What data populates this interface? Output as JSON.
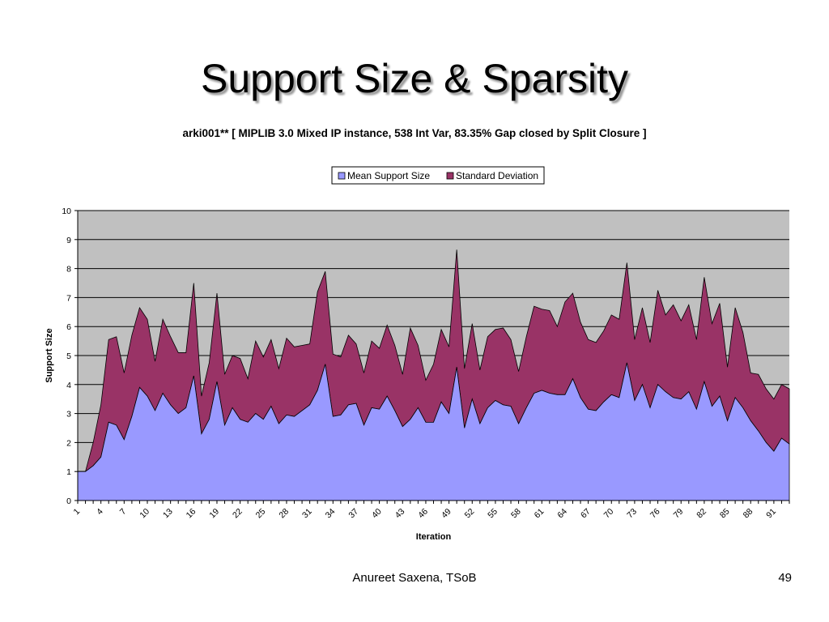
{
  "slide": {
    "title": "Support Size & Sparsity",
    "footer_author": "Anureet Saxena, TSoB",
    "page_number": "49"
  },
  "colors": {
    "plot_background": "#c0c0c0",
    "gridline": "#000000",
    "mean_fill": "#9999ff",
    "std_fill": "#993366",
    "outline": "#000000"
  },
  "chart_data": {
    "type": "area",
    "stacked": true,
    "title": "arki001** [ MIPLIB 3.0 Mixed IP instance, 538 Int Var, 83.35% Gap closed by Split Closure ]",
    "xlabel": "Iteration",
    "ylabel": "Support Size",
    "ylim": [
      0,
      10
    ],
    "y_ticks": [
      "0",
      "1",
      "2",
      "3",
      "4",
      "5",
      "6",
      "7",
      "8",
      "9",
      "10"
    ],
    "x": [
      1,
      2,
      3,
      4,
      5,
      6,
      7,
      8,
      9,
      10,
      11,
      12,
      13,
      14,
      15,
      16,
      17,
      18,
      19,
      20,
      21,
      22,
      23,
      24,
      25,
      26,
      27,
      28,
      29,
      30,
      31,
      32,
      33,
      34,
      35,
      36,
      37,
      38,
      39,
      40,
      41,
      42,
      43,
      44,
      45,
      46,
      47,
      48,
      49,
      50,
      51,
      52,
      53,
      54,
      55,
      56,
      57,
      58,
      59,
      60,
      61,
      62,
      63,
      64,
      65,
      66,
      67,
      68,
      69,
      70,
      71,
      72,
      73,
      74,
      75,
      76,
      77,
      78,
      79,
      80,
      81,
      82,
      83,
      84,
      85,
      86,
      87,
      88,
      89,
      90,
      91,
      92,
      93
    ],
    "x_tick_labels": [
      "1",
      "4",
      "7",
      "10",
      "13",
      "16",
      "19",
      "22",
      "25",
      "28",
      "31",
      "34",
      "37",
      "40",
      "43",
      "46",
      "49",
      "52",
      "55",
      "58",
      "61",
      "64",
      "67",
      "70",
      "73",
      "76",
      "79",
      "82",
      "85",
      "88",
      "91"
    ],
    "grid": true,
    "legend_position": "top-center",
    "series": [
      {
        "name": "Mean Support Size",
        "values": [
          1,
          1,
          1.2,
          1.5,
          2.7,
          2.6,
          2.1,
          2.9,
          3.9,
          3.6,
          3.1,
          3.7,
          3.3,
          3.0,
          3.2,
          4.3,
          2.3,
          2.8,
          4.1,
          2.6,
          3.2,
          2.8,
          2.7,
          3.0,
          2.8,
          3.25,
          2.65,
          2.95,
          2.9,
          3.1,
          3.3,
          3.8,
          4.7,
          2.9,
          2.95,
          3.3,
          3.35,
          2.6,
          3.2,
          3.15,
          3.6,
          3.1,
          2.55,
          2.8,
          3.2,
          2.7,
          2.7,
          3.4,
          3.0,
          4.6,
          2.5,
          3.5,
          2.65,
          3.2,
          3.45,
          3.3,
          3.25,
          2.65,
          3.2,
          3.7,
          3.8,
          3.7,
          3.65,
          3.65,
          4.2,
          3.55,
          3.15,
          3.1,
          3.4,
          3.65,
          3.55,
          4.75,
          3.45,
          4.0,
          3.2,
          4.0,
          3.75,
          3.55,
          3.5,
          3.75,
          3.15,
          4.1,
          3.25,
          3.6,
          2.75,
          3.55,
          3.2,
          2.75,
          2.4,
          2.0,
          1.7,
          2.15,
          1.95
        ]
      },
      {
        "name": "Standard Deviation",
        "values": [
          0,
          0,
          0.8,
          1.8,
          2.85,
          3.05,
          2.3,
          2.8,
          2.75,
          2.65,
          1.7,
          2.55,
          2.35,
          2.1,
          1.9,
          3.2,
          1.3,
          1.95,
          3.05,
          1.75,
          1.8,
          2.1,
          1.5,
          2.5,
          2.15,
          2.3,
          1.9,
          2.65,
          2.4,
          2.25,
          2.1,
          3.4,
          3.2,
          2.15,
          2.0,
          2.4,
          2.05,
          1.8,
          2.3,
          2.1,
          2.45,
          2.25,
          1.8,
          3.15,
          2.15,
          1.45,
          2.0,
          2.5,
          2.3,
          4.05,
          2.05,
          2.6,
          1.85,
          2.45,
          2.45,
          2.65,
          2.3,
          1.8,
          2.45,
          3.0,
          2.8,
          2.85,
          2.35,
          3.2,
          2.95,
          2.6,
          2.4,
          2.35,
          2.45,
          2.75,
          2.7,
          3.45,
          2.1,
          2.65,
          2.25,
          3.25,
          2.65,
          3.2,
          2.7,
          3.0,
          2.4,
          3.6,
          2.85,
          3.2,
          1.85,
          3.1,
          2.6,
          1.65,
          1.95,
          1.85,
          1.8,
          1.85,
          1.9
        ]
      }
    ]
  }
}
